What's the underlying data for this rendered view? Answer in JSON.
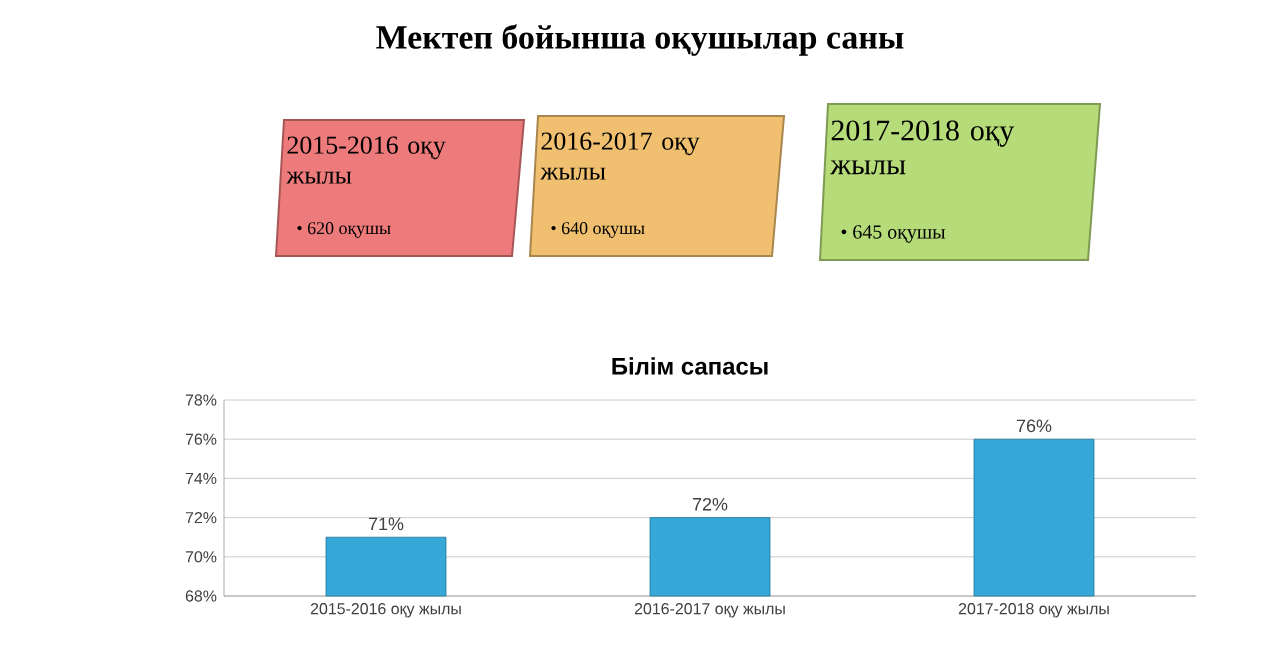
{
  "chart_data": [
    {
      "type": "other",
      "title": "Мектеп бойынша оқушылар саны",
      "annotations": [
        "2015-2016 оқу жылы",
        "• 620 оқушы",
        "2016-2017 оқу жылы",
        "• 640 оқушы",
        "2017-2018 оқу жылы",
        "• 645 оқушы"
      ],
      "colors": [
        "#ee7b7b",
        "#f0c070",
        "#b5dc78"
      ]
    },
    {
      "type": "bar",
      "title": "Білім сапасы",
      "categories": [
        "2015-2016 оқу жылы",
        "2016-2017 оқу жылы",
        "2017-2018 оқу жылы"
      ],
      "values": [
        71,
        72,
        76
      ],
      "value_labels": [
        "71%",
        "72%",
        "76%"
      ],
      "color": "#35a8d8",
      "ylim": [
        68,
        78
      ],
      "yticks": [
        {
          "value": 68,
          "label": "68%"
        },
        {
          "value": 70,
          "label": "70%"
        },
        {
          "value": 72,
          "label": "72%"
        },
        {
          "value": 74,
          "label": "74%"
        },
        {
          "value": 76,
          "label": "76%"
        },
        {
          "value": 78,
          "label": "78%"
        }
      ],
      "grid": "y"
    }
  ]
}
